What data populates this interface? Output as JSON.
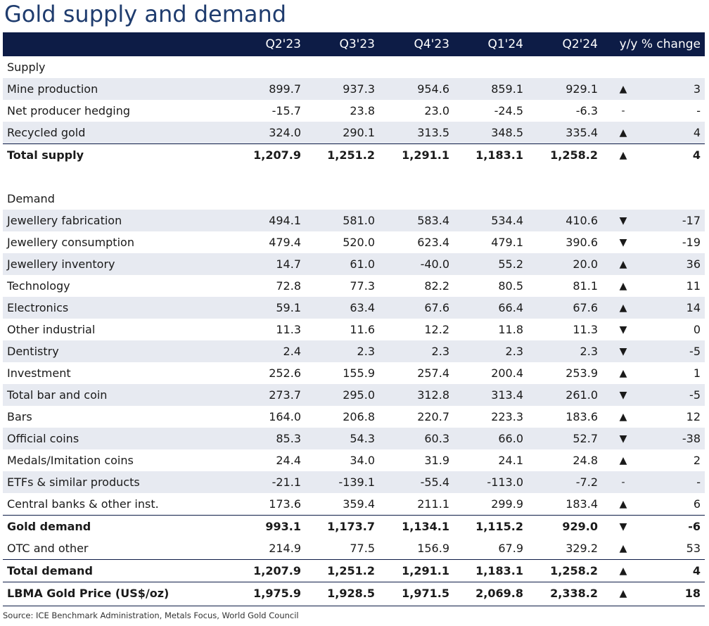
{
  "title": "Gold supply and demand",
  "columns": [
    "Q2'23",
    "Q3'23",
    "Q4'23",
    "Q1'24",
    "Q2'24",
    "y/y % change"
  ],
  "rows": [
    {
      "label": "Supply",
      "section": true
    },
    {
      "label": "Mine production",
      "values": [
        "899.7",
        "937.3",
        "954.6",
        "859.1",
        "929.1"
      ],
      "dir": "up",
      "arrow": "▲",
      "change": "3"
    },
    {
      "label": "Net producer hedging",
      "values": [
        "-15.7",
        "23.8",
        "23.0",
        "-24.5",
        "-6.3"
      ],
      "dir": "none",
      "arrow": "-",
      "change": "-"
    },
    {
      "label": "Recycled gold",
      "values": [
        "324.0",
        "290.1",
        "313.5",
        "348.5",
        "335.4"
      ],
      "dir": "up",
      "arrow": "▲",
      "change": "4"
    },
    {
      "label": "Total supply",
      "values": [
        "1,207.9",
        "1,251.2",
        "1,291.1",
        "1,183.1",
        "1,258.2"
      ],
      "dir": "up",
      "arrow": "▲",
      "change": "4",
      "total": true
    },
    {
      "spacer": true
    },
    {
      "label": "Demand",
      "section": true
    },
    {
      "label": "Jewellery fabrication",
      "values": [
        "494.1",
        "581.0",
        "583.4",
        "534.4",
        "410.6"
      ],
      "dir": "down",
      "arrow": "▼",
      "change": "-17"
    },
    {
      "label": "Jewellery consumption",
      "values": [
        "479.4",
        "520.0",
        "623.4",
        "479.1",
        "390.6"
      ],
      "dir": "down",
      "arrow": "▼",
      "change": "-19"
    },
    {
      "label": "Jewellery inventory",
      "values": [
        "14.7",
        "61.0",
        "-40.0",
        "55.2",
        "20.0"
      ],
      "dir": "up",
      "arrow": "▲",
      "change": "36"
    },
    {
      "label": "Technology",
      "values": [
        "72.8",
        "77.3",
        "82.2",
        "80.5",
        "81.1"
      ],
      "dir": "up",
      "arrow": "▲",
      "change": "11"
    },
    {
      "label": "Electronics",
      "values": [
        "59.1",
        "63.4",
        "67.6",
        "66.4",
        "67.6"
      ],
      "dir": "up",
      "arrow": "▲",
      "change": "14"
    },
    {
      "label": "Other industrial",
      "values": [
        "11.3",
        "11.6",
        "12.2",
        "11.8",
        "11.3"
      ],
      "dir": "down",
      "arrow": "▼",
      "change": "0"
    },
    {
      "label": "Dentistry",
      "values": [
        "2.4",
        "2.3",
        "2.3",
        "2.3",
        "2.3"
      ],
      "dir": "down",
      "arrow": "▼",
      "change": "-5"
    },
    {
      "label": "Investment",
      "values": [
        "252.6",
        "155.9",
        "257.4",
        "200.4",
        "253.9"
      ],
      "dir": "up",
      "arrow": "▲",
      "change": "1"
    },
    {
      "label": "Total bar and coin",
      "values": [
        "273.7",
        "295.0",
        "312.8",
        "313.4",
        "261.0"
      ],
      "dir": "down",
      "arrow": "▼",
      "change": "-5"
    },
    {
      "label": "Bars",
      "values": [
        "164.0",
        "206.8",
        "220.7",
        "223.3",
        "183.6"
      ],
      "dir": "up",
      "arrow": "▲",
      "change": "12"
    },
    {
      "label": "Official coins",
      "values": [
        "85.3",
        "54.3",
        "60.3",
        "66.0",
        "52.7"
      ],
      "dir": "down",
      "arrow": "▼",
      "change": "-38"
    },
    {
      "label": "Medals/Imitation coins",
      "values": [
        "24.4",
        "34.0",
        "31.9",
        "24.1",
        "24.8"
      ],
      "dir": "up",
      "arrow": "▲",
      "change": "2"
    },
    {
      "label": "ETFs & similar products",
      "values": [
        "-21.1",
        "-139.1",
        "-55.4",
        "-113.0",
        "-7.2"
      ],
      "dir": "none",
      "arrow": "-",
      "change": "-"
    },
    {
      "label": "Central banks & other inst.",
      "values": [
        "173.6",
        "359.4",
        "211.1",
        "299.9",
        "183.4"
      ],
      "dir": "up",
      "arrow": "▲",
      "change": "6"
    },
    {
      "label": "Gold demand",
      "values": [
        "993.1",
        "1,173.7",
        "1,134.1",
        "1,115.2",
        "929.0"
      ],
      "dir": "down",
      "arrow": "▼",
      "change": "-6",
      "total": true
    },
    {
      "label": "OTC and other",
      "values": [
        "214.9",
        "77.5",
        "156.9",
        "67.9",
        "329.2"
      ],
      "dir": "up",
      "arrow": "▲",
      "change": "53"
    },
    {
      "label": "Total demand",
      "values": [
        "1,207.9",
        "1,251.2",
        "1,291.1",
        "1,183.1",
        "1,258.2"
      ],
      "dir": "up",
      "arrow": "▲",
      "change": "4",
      "total": true
    },
    {
      "label": "LBMA Gold Price (US$/oz)",
      "values": [
        "1,975.9",
        "1,928.5",
        "1,971.5",
        "2,069.8",
        "2,338.2"
      ],
      "dir": "up",
      "arrow": "▲",
      "change": "18",
      "total": true
    }
  ],
  "source": "Source: ICE Benchmark Administration, Metals Focus, World Gold Council",
  "colors": {
    "header_bg": "#0d1c46",
    "shade": "#e7eaf1",
    "title": "#1f3c6e"
  }
}
